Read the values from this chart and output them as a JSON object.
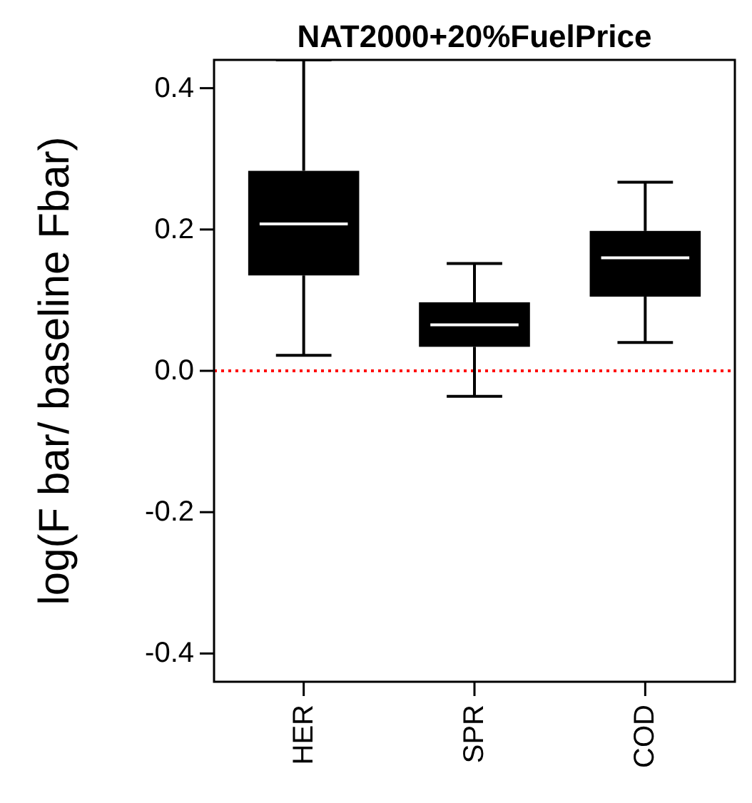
{
  "chart_data": {
    "type": "box",
    "title": "NAT2000+20%FuelPrice",
    "ylabel": "log(F bar/ baseline Fbar)",
    "categories": [
      "HER",
      "SPR",
      "COD"
    ],
    "boxes": [
      {
        "low": 0.022,
        "q1": 0.135,
        "median": 0.208,
        "q3": 0.283,
        "high": 0.44
      },
      {
        "low": -0.036,
        "q1": 0.034,
        "median": 0.065,
        "q3": 0.097,
        "high": 0.152
      },
      {
        "low": 0.04,
        "q1": 0.105,
        "median": 0.16,
        "q3": 0.198,
        "high": 0.267
      }
    ],
    "color": "#000000",
    "ylim": [
      -0.44,
      0.44
    ],
    "yticks": [
      {
        "value": -0.4,
        "label": "-0.4"
      },
      {
        "value": -0.2,
        "label": "-0.2"
      },
      {
        "value": 0,
        "label": "0.0"
      },
      {
        "value": 0.2,
        "label": "0.2"
      },
      {
        "value": 0.4,
        "label": "0.4"
      }
    ],
    "ref_lines": [
      {
        "axis": "y",
        "value": 0,
        "color": "#ff0000",
        "line_style": "dotted"
      }
    ]
  }
}
